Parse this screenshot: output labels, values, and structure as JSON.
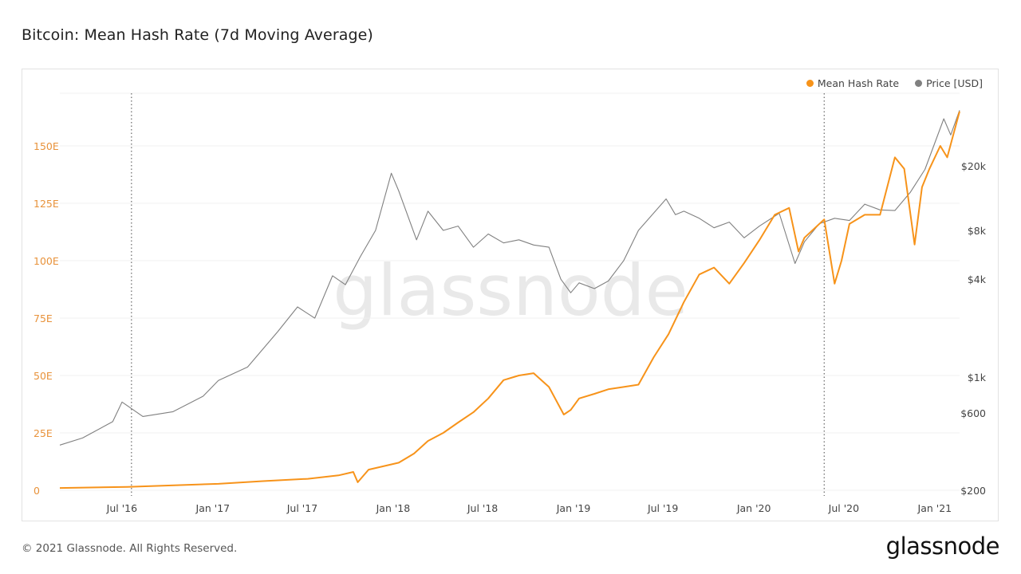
{
  "header": {
    "title": "Bitcoin: Mean Hash Rate (7d Moving Average)"
  },
  "footer": {
    "copyright": "© 2021 Glassnode. All Rights Reserved.",
    "logo": "glassnode"
  },
  "watermark": "glassnode",
  "chart_data": {
    "type": "line",
    "title": "Bitcoin: Mean Hash Rate (7d Moving Average)",
    "legend_position": "top-right",
    "grid": true,
    "x_ticks": [
      "Jul '16",
      "Jan '17",
      "Jul '17",
      "Jan '18",
      "Jul '18",
      "Jan '19",
      "Jul '19",
      "Jan '20",
      "Jul '20",
      "Jan '21"
    ],
    "x_tick_dates": [
      "2016-07-01",
      "2017-01-01",
      "2017-07-01",
      "2018-01-01",
      "2018-07-01",
      "2019-01-01",
      "2019-07-01",
      "2020-01-01",
      "2020-07-01",
      "2021-01-01"
    ],
    "x_range": [
      "2016-02-15",
      "2021-02-09"
    ],
    "event_markers": [
      "2016-07-09",
      "2020-05-11"
    ],
    "y_left": {
      "ticks": [
        "0",
        "25E",
        "50E",
        "75E",
        "100E",
        "125E",
        "150E"
      ],
      "tick_values": [
        0,
        25,
        50,
        75,
        100,
        125,
        150
      ],
      "range": [
        0,
        175
      ],
      "color": "#e8923a"
    },
    "y_right": {
      "scale": "log",
      "ticks": [
        "$200",
        "$600",
        "$1k",
        "$4k",
        "$8k",
        "$20k"
      ],
      "tick_values": [
        200,
        600,
        1000,
        4000,
        8000,
        20000
      ],
      "range": [
        200,
        60000
      ]
    },
    "series": [
      {
        "name": "Mean Hash Rate",
        "axis": "left",
        "color": "#f7931a",
        "x": [
          "2016-02-15",
          "2016-07-01",
          "2017-01-01",
          "2017-04-01",
          "2017-07-01",
          "2017-09-01",
          "2017-10-01",
          "2017-10-10",
          "2017-11-01",
          "2018-01-01",
          "2018-02-01",
          "2018-03-01",
          "2018-04-01",
          "2018-05-01",
          "2018-06-01",
          "2018-07-01",
          "2018-08-01",
          "2018-09-01",
          "2018-10-01",
          "2018-11-01",
          "2018-12-01",
          "2018-12-15",
          "2019-01-01",
          "2019-02-01",
          "2019-03-01",
          "2019-04-01",
          "2019-05-01",
          "2019-06-01",
          "2019-07-01",
          "2019-08-01",
          "2019-09-01",
          "2019-10-01",
          "2019-11-01",
          "2019-12-01",
          "2020-01-01",
          "2020-02-01",
          "2020-03-01",
          "2020-03-20",
          "2020-04-01",
          "2020-05-11",
          "2020-06-01",
          "2020-06-15",
          "2020-07-01",
          "2020-08-01",
          "2020-09-01",
          "2020-10-01",
          "2020-10-20",
          "2020-11-10",
          "2020-11-25",
          "2020-12-10",
          "2021-01-01",
          "2021-01-15",
          "2021-02-09"
        ],
        "values": [
          1,
          1.5,
          2.8,
          4,
          5,
          6.5,
          8,
          3.5,
          9,
          12,
          16,
          21.5,
          25,
          29.5,
          34,
          40,
          48,
          50,
          51,
          45,
          33,
          35,
          40,
          42,
          44,
          45,
          46,
          58,
          68,
          82,
          94,
          97,
          90,
          99,
          109,
          120,
          123,
          104,
          110,
          118,
          90,
          100,
          116,
          120,
          120,
          145,
          140,
          107,
          132,
          140,
          150,
          145,
          165
        ]
      },
      {
        "name": "Price [USD]",
        "axis": "right",
        "color": "#808080",
        "x": [
          "2016-02-15",
          "2016-04-01",
          "2016-06-01",
          "2016-06-20",
          "2016-08-01",
          "2016-10-01",
          "2016-12-01",
          "2017-01-01",
          "2017-03-01",
          "2017-05-01",
          "2017-06-10",
          "2017-07-15",
          "2017-08-20",
          "2017-09-15",
          "2017-10-15",
          "2017-11-15",
          "2017-12-17",
          "2018-01-01",
          "2018-02-06",
          "2018-03-01",
          "2018-04-01",
          "2018-05-01",
          "2018-06-01",
          "2018-07-01",
          "2018-08-01",
          "2018-09-01",
          "2018-10-01",
          "2018-11-01",
          "2018-11-25",
          "2018-12-15",
          "2019-01-01",
          "2019-02-01",
          "2019-03-01",
          "2019-04-01",
          "2019-05-01",
          "2019-06-26",
          "2019-07-15",
          "2019-08-01",
          "2019-09-01",
          "2019-10-01",
          "2019-11-01",
          "2019-12-01",
          "2020-01-01",
          "2020-02-10",
          "2020-03-13",
          "2020-04-01",
          "2020-05-01",
          "2020-06-01",
          "2020-07-01",
          "2020-08-01",
          "2020-09-01",
          "2020-10-01",
          "2020-11-01",
          "2020-12-01",
          "2021-01-08",
          "2021-01-22",
          "2021-02-09"
        ],
        "values": [
          380,
          420,
          530,
          700,
          570,
          610,
          760,
          950,
          1150,
          1900,
          2700,
          2300,
          4200,
          3700,
          5500,
          8000,
          18000,
          14000,
          7000,
          10500,
          8000,
          8500,
          6300,
          7600,
          6700,
          7000,
          6500,
          6300,
          4000,
          3300,
          3800,
          3500,
          3900,
          5200,
          8000,
          12500,
          10000,
          10500,
          9500,
          8300,
          9000,
          7200,
          8500,
          10200,
          5000,
          6800,
          8800,
          9500,
          9200,
          11600,
          10700,
          10600,
          13700,
          19000,
          39000,
          31000,
          44000
        ]
      }
    ]
  }
}
